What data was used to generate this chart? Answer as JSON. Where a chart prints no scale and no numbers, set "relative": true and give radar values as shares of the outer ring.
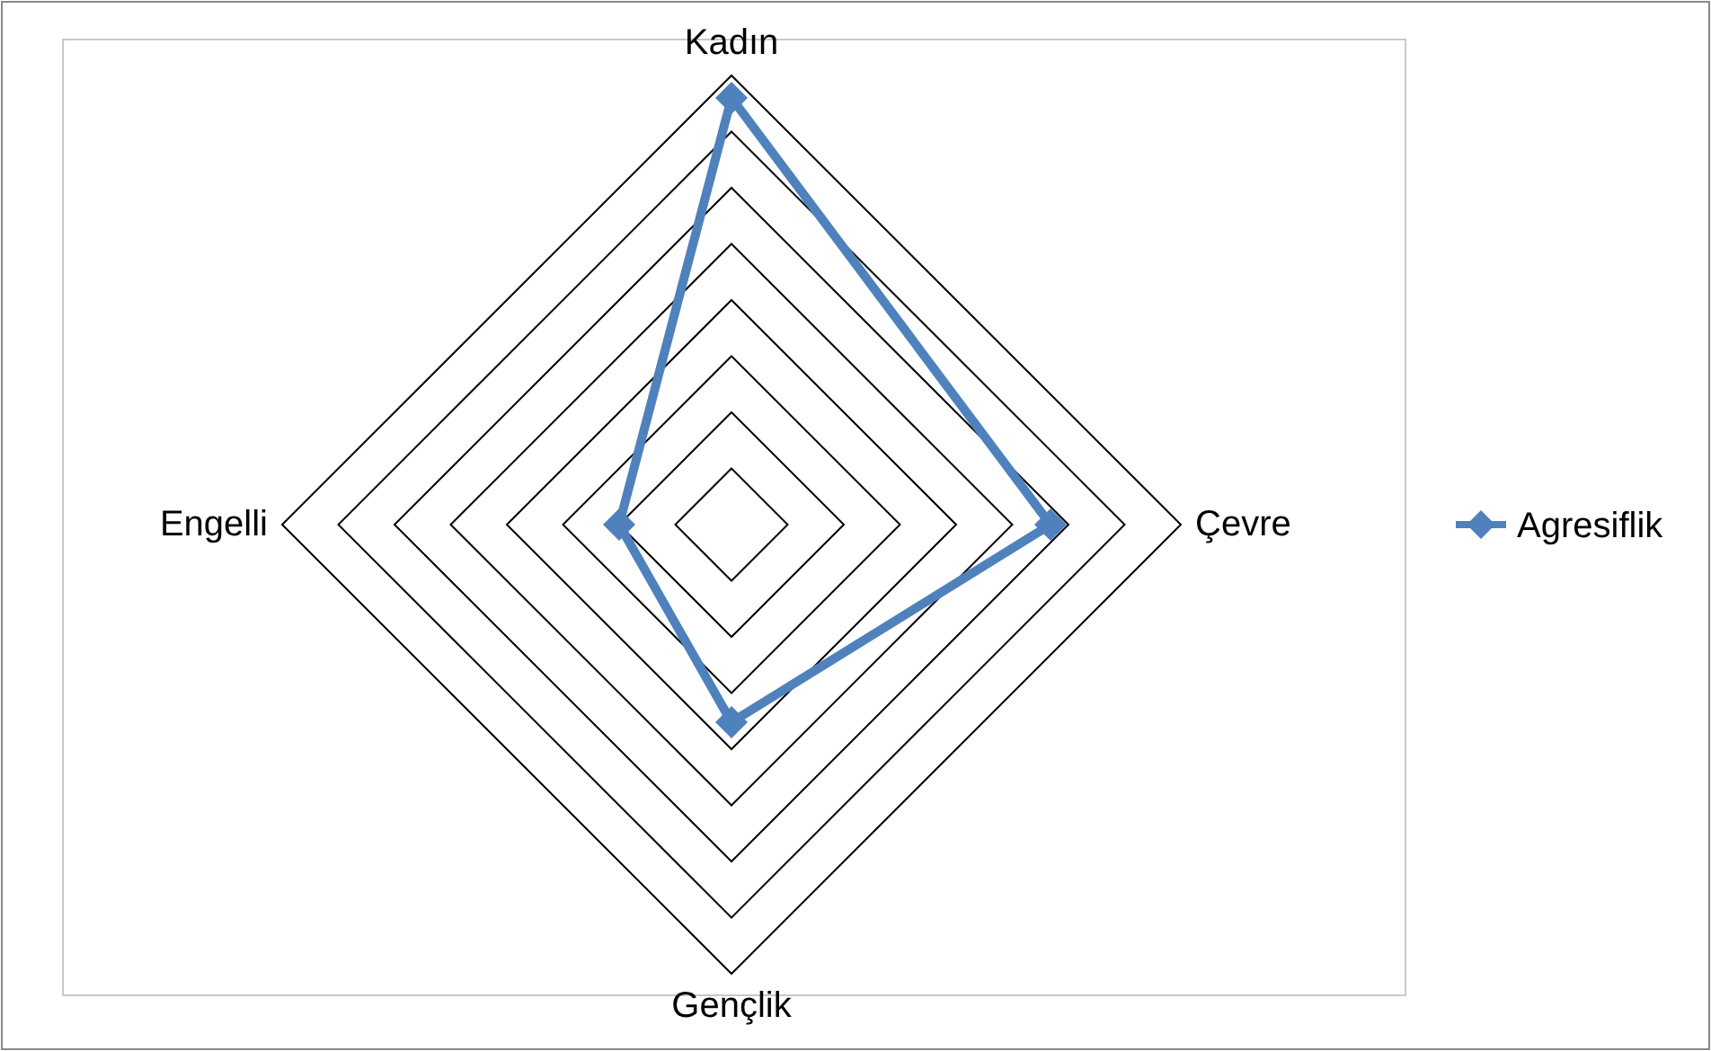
{
  "chart_data": {
    "type": "radar",
    "relative": true,
    "categories": [
      "Kadın",
      "Çevre",
      "Gençlik",
      "Engelli"
    ],
    "series": [
      {
        "name": "Agresiflik",
        "color": "#4f81bd",
        "values": [
          0.95,
          0.71,
          0.44,
          0.25
        ]
      }
    ],
    "grid": true,
    "legend": "right",
    "marker": "diamond",
    "line_style": "solid"
  }
}
